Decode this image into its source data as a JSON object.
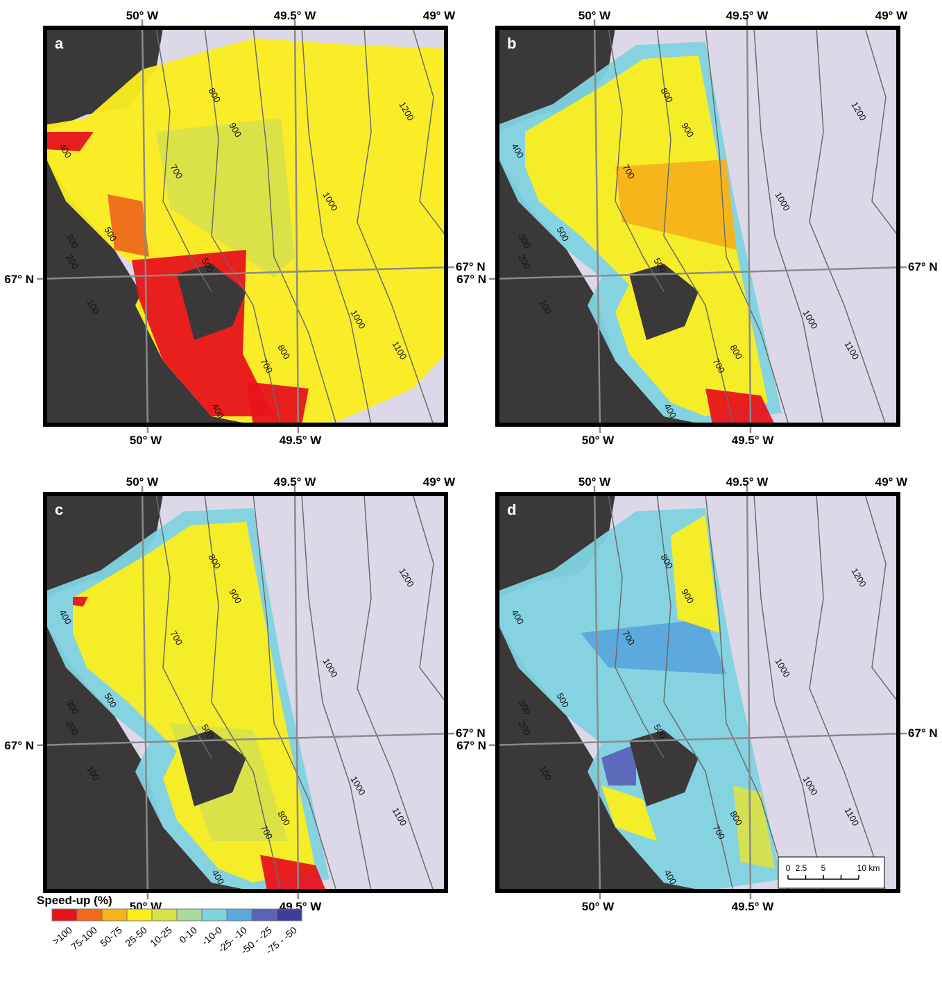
{
  "panels": [
    {
      "label": "a",
      "lon_top": [
        "50° W",
        "49.5° W",
        "49° W"
      ],
      "lon_bottom": [
        "50° W",
        "49.5° W"
      ],
      "lat": [
        "67° N",
        "67° N"
      ],
      "contours": [
        "800",
        "900",
        "700",
        "1000",
        "1200",
        "500",
        "1000",
        "1100",
        "800",
        "700",
        "400",
        "500",
        "400",
        "300",
        "200",
        "100"
      ]
    },
    {
      "label": "b",
      "lon_top": [
        "50° W",
        "49.5° W",
        "49° W"
      ],
      "lon_bottom": [
        "50° W",
        "49.5° W"
      ],
      "lat": [
        "67° N",
        "67° N"
      ],
      "contours": [
        "800",
        "900",
        "700",
        "1000",
        "1200",
        "500",
        "1000",
        "1100",
        "800",
        "700",
        "400",
        "500",
        "400",
        "300",
        "200",
        "100"
      ]
    },
    {
      "label": "c",
      "lon_top": [
        "50° W",
        "49.5° W",
        "49° W"
      ],
      "lon_bottom": [
        "50° W",
        "49.5° W"
      ],
      "lat": [
        "67° N",
        "67° N"
      ],
      "contours": [
        "800",
        "900",
        "700",
        "1000",
        "1200",
        "500",
        "1000",
        "1100",
        "800",
        "700",
        "400",
        "500",
        "400",
        "300",
        "200",
        "100"
      ]
    },
    {
      "label": "d",
      "lon_top": [
        "50° W",
        "49.5° W",
        "49° W"
      ],
      "lon_bottom": [
        "50° W",
        "49.5° W"
      ],
      "lat": [
        "67° N",
        "67° N"
      ],
      "contours": [
        "800",
        "900",
        "700",
        "1000",
        "1200",
        "500",
        "1000",
        "1100",
        "800",
        "700",
        "400",
        "500",
        "400",
        "300",
        "200",
        "100"
      ]
    }
  ],
  "legend": {
    "title": "Speed-up (%)",
    "classes": [
      {
        "label": ">100",
        "color": "#e8141c"
      },
      {
        "label": "75-100",
        "color": "#ef6a1a"
      },
      {
        "label": "50-75",
        "color": "#f6b31a"
      },
      {
        "label": "25-50",
        "color": "#fbee1e"
      },
      {
        "label": "10-25",
        "color": "#d8e24a"
      },
      {
        "label": "0-10",
        "color": "#a9d99a"
      },
      {
        "label": "-10-0",
        "color": "#7fd3e0"
      },
      {
        "label": "-25- -10",
        "color": "#5aa8dc"
      },
      {
        "label": "-50 - -25",
        "color": "#5b63b8"
      },
      {
        "label": "-75 - -50",
        "color": "#3c3f9a"
      }
    ]
  },
  "scale_bar": {
    "labels": [
      "0",
      "2.5",
      "5",
      "10 km"
    ]
  }
}
